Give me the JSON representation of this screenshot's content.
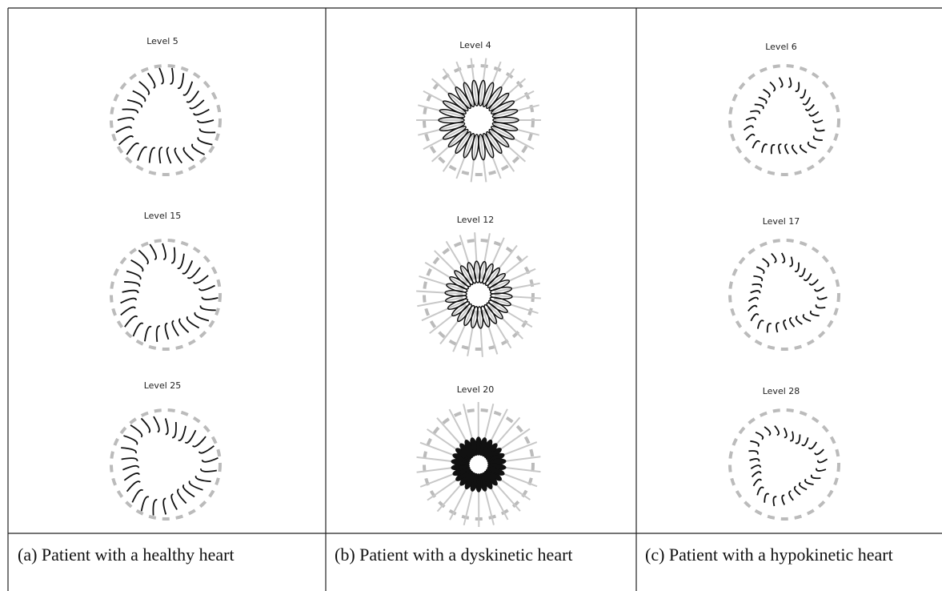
{
  "panels": [
    {
      "levels": [
        "Level 5",
        "Level 15",
        "Level 25"
      ],
      "caption": "(a) Patient with a healthy heart"
    },
    {
      "levels": [
        "Level 4",
        "Level 12",
        "Level 20"
      ],
      "caption": "(b) Patient with a dyskinetic heart"
    },
    {
      "levels": [
        "Level 6",
        "Level 17",
        "Level 28"
      ],
      "caption": "(c) Patient with a hypokinetic heart"
    }
  ]
}
